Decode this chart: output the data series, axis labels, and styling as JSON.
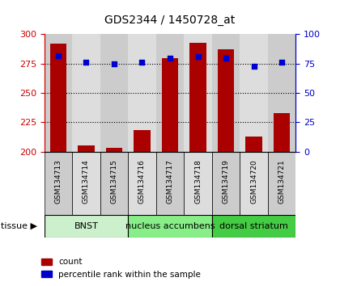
{
  "title": "GDS2344 / 1450728_at",
  "samples": [
    "GSM134713",
    "GSM134714",
    "GSM134715",
    "GSM134716",
    "GSM134717",
    "GSM134718",
    "GSM134719",
    "GSM134720",
    "GSM134721"
  ],
  "counts": [
    292,
    205,
    203,
    218,
    280,
    293,
    287,
    213,
    233
  ],
  "percentile_ranks": [
    82,
    76,
    75,
    76,
    80,
    81,
    80,
    73,
    76
  ],
  "ylim_left": [
    200,
    300
  ],
  "ylim_right": [
    0,
    100
  ],
  "yticks_left": [
    200,
    225,
    250,
    275,
    300
  ],
  "yticks_right": [
    0,
    25,
    50,
    75,
    100
  ],
  "bar_color": "#aa0000",
  "dot_color": "#0000cc",
  "bar_width": 0.6,
  "tissue_groups": [
    {
      "label": "BNST",
      "start": 0,
      "end": 2,
      "color": "#ccf0cc"
    },
    {
      "label": "nucleus accumbens",
      "start": 3,
      "end": 5,
      "color": "#88ee88"
    },
    {
      "label": "dorsal striatum",
      "start": 6,
      "end": 8,
      "color": "#44cc44"
    }
  ],
  "legend_count_label": "count",
  "legend_pct_label": "percentile rank within the sample",
  "left_axis_color": "#cc0000",
  "right_axis_color": "#0000cc",
  "col_colors": [
    "#cccccc",
    "#dddddd",
    "#cccccc",
    "#dddddd",
    "#cccccc",
    "#dddddd",
    "#cccccc",
    "#dddddd",
    "#cccccc"
  ]
}
